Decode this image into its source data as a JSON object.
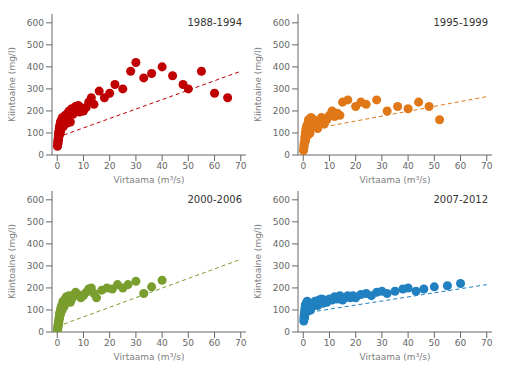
{
  "chart_data": [
    {
      "type": "scatter",
      "title": "1988-1994",
      "xlabel": "Virtaama (m³/s)",
      "ylabel": "Kiintoaine  (mg/l)",
      "xlim": [
        -2,
        72
      ],
      "ylim": [
        0,
        640
      ],
      "xticks": [
        0,
        10,
        20,
        30,
        40,
        50,
        60,
        70
      ],
      "yticks": [
        0,
        100,
        200,
        300,
        400,
        500,
        600
      ],
      "grid": false,
      "series": [
        {
          "type": "scatter",
          "marker": "circle",
          "color": "#c00000",
          "x": [
            0.1,
            0.2,
            0.2,
            0.3,
            0.3,
            0.4,
            0.4,
            0.5,
            0.5,
            0.5,
            0.6,
            0.6,
            0.7,
            0.7,
            0.8,
            0.8,
            0.9,
            0.9,
            1.0,
            1.0,
            1.1,
            1.1,
            1.2,
            1.2,
            1.3,
            1.3,
            1.4,
            1.5,
            1.5,
            1.6,
            1.7,
            1.8,
            1.9,
            2.0,
            2.0,
            2.1,
            2.2,
            2.3,
            2.4,
            2.5,
            2.6,
            2.7,
            2.8,
            3.0,
            3.2,
            3.5,
            3.8,
            4.0,
            4.5,
            5.0,
            5.5,
            6.0,
            6.5,
            7.0,
            8.0,
            8.5,
            9.0,
            10.0,
            11.0,
            12.0,
            13.0,
            14.0,
            16.0,
            18.0,
            20.0,
            22.0,
            25.0,
            28.0,
            30.0,
            33.0,
            36.0,
            40.0,
            44.0,
            48.0,
            50.0,
            55.0,
            60.0,
            65.0
          ],
          "values": [
            40,
            50,
            60,
            55,
            70,
            65,
            80,
            75,
            90,
            100,
            85,
            95,
            100,
            110,
            90,
            120,
            115,
            130,
            105,
            125,
            140,
            100,
            150,
            120,
            110,
            130,
            140,
            120,
            150,
            160,
            140,
            155,
            130,
            145,
            170,
            150,
            160,
            140,
            130,
            165,
            150,
            170,
            140,
            180,
            160,
            170,
            145,
            190,
            200,
            150,
            210,
            185,
            200,
            220,
            225,
            195,
            215,
            200,
            215,
            240,
            260,
            230,
            290,
            260,
            280,
            320,
            300,
            380,
            420,
            350,
            370,
            400,
            360,
            320,
            300,
            380,
            280,
            260
          ]
        },
        {
          "type": "line",
          "line_style": "dashed",
          "color": "#c00000",
          "x": [
            0,
            70
          ],
          "values": [
            80,
            380
          ]
        }
      ]
    },
    {
      "type": "scatter",
      "title": "1995-1999",
      "xlabel": "Virtaama (m³/s)",
      "ylabel": "Kiintoaine  (mg/l)",
      "xlim": [
        -2,
        72
      ],
      "ylim": [
        0,
        640
      ],
      "xticks": [
        0,
        10,
        20,
        30,
        40,
        50,
        60,
        70
      ],
      "yticks": [
        0,
        100,
        200,
        300,
        400,
        500,
        600
      ],
      "grid": false,
      "series": [
        {
          "type": "scatter",
          "marker": "circle",
          "color": "#e07818",
          "x": [
            0.1,
            0.2,
            0.3,
            0.3,
            0.5,
            0.5,
            0.6,
            0.7,
            0.8,
            0.8,
            0.9,
            1.0,
            1.0,
            1.1,
            1.2,
            1.3,
            1.4,
            1.5,
            1.6,
            1.7,
            1.8,
            2.0,
            2.2,
            2.4,
            2.6,
            3.0,
            3.5,
            4.0,
            4.5,
            5.0,
            5.5,
            6.0,
            7.0,
            7.5,
            8.0,
            9.0,
            10.0,
            11.0,
            12.0,
            13.0,
            14.0,
            15.0,
            17.0,
            20.0,
            22.0,
            24.0,
            28.0,
            32.0,
            36.0,
            40.0,
            44.0,
            48.0,
            52.0
          ],
          "values": [
            20,
            30,
            50,
            40,
            60,
            55,
            80,
            70,
            100,
            90,
            65,
            110,
            95,
            120,
            85,
            130,
            110,
            100,
            140,
            120,
            90,
            160,
            150,
            125,
            100,
            170,
            140,
            160,
            130,
            155,
            120,
            145,
            170,
            150,
            140,
            160,
            180,
            200,
            175,
            190,
            180,
            240,
            250,
            220,
            240,
            230,
            250,
            200,
            220,
            210,
            240,
            220,
            160
          ]
        },
        {
          "type": "line",
          "line_style": "dashed",
          "color": "#e07818",
          "x": [
            0,
            70
          ],
          "values": [
            110,
            265
          ]
        }
      ]
    },
    {
      "type": "scatter",
      "title": "2000-2006",
      "xlabel": "Virtaama (m³/s)",
      "ylabel": "Kiintoaine  (mg/l)",
      "xlim": [
        -2,
        72
      ],
      "ylim": [
        0,
        640
      ],
      "xticks": [
        0,
        10,
        20,
        30,
        40,
        50,
        60,
        70
      ],
      "yticks": [
        0,
        100,
        200,
        300,
        400,
        500,
        600
      ],
      "grid": false,
      "series": [
        {
          "type": "scatter",
          "marker": "circle",
          "color": "#7a9e2e",
          "x": [
            0.1,
            0.2,
            0.2,
            0.3,
            0.3,
            0.4,
            0.5,
            0.5,
            0.6,
            0.7,
            0.7,
            0.8,
            0.8,
            0.9,
            1.0,
            1.0,
            1.1,
            1.2,
            1.2,
            1.3,
            1.4,
            1.5,
            1.6,
            1.7,
            1.8,
            1.9,
            2.0,
            2.0,
            2.2,
            2.4,
            2.6,
            2.8,
            3.0,
            3.5,
            4.0,
            4.5,
            5.0,
            5.5,
            6.0,
            6.5,
            7.0,
            8.0,
            9.0,
            10.0,
            11.0,
            12.0,
            13.0,
            14.0,
            15.0,
            17.0,
            19.0,
            21.0,
            23.0,
            25.0,
            27.0,
            30.0,
            33.0,
            36.0,
            40.0
          ],
          "values": [
            10,
            15,
            20,
            25,
            30,
            35,
            40,
            50,
            45,
            60,
            55,
            70,
            65,
            80,
            75,
            90,
            85,
            95,
            80,
            100,
            110,
            95,
            105,
            120,
            110,
            100,
            125,
            115,
            140,
            130,
            115,
            125,
            150,
            160,
            145,
            165,
            135,
            150,
            160,
            170,
            180,
            170,
            155,
            165,
            180,
            195,
            200,
            175,
            155,
            190,
            200,
            195,
            215,
            200,
            215,
            230,
            175,
            205,
            235
          ]
        },
        {
          "type": "line",
          "line_style": "dashed",
          "color": "#7a9e2e",
          "x": [
            0,
            70
          ],
          "values": [
            25,
            330
          ]
        }
      ]
    },
    {
      "type": "scatter",
      "title": "2007-2012",
      "xlabel": "Virtaama (m³/s)",
      "ylabel": "Kiintoaine  (mg/l)",
      "xlim": [
        -2,
        72
      ],
      "ylim": [
        0,
        640
      ],
      "xticks": [
        0,
        10,
        20,
        30,
        40,
        50,
        60,
        70
      ],
      "yticks": [
        0,
        100,
        200,
        300,
        400,
        500,
        600
      ],
      "grid": false,
      "series": [
        {
          "type": "scatter",
          "marker": "circle",
          "color": "#2080c0",
          "x": [
            0.2,
            0.3,
            0.3,
            0.4,
            0.5,
            0.5,
            0.6,
            0.7,
            0.7,
            0.8,
            0.8,
            0.9,
            1.0,
            1.0,
            1.1,
            1.2,
            1.2,
            1.3,
            1.4,
            1.5,
            1.5,
            1.6,
            1.7,
            1.8,
            1.9,
            2.0,
            2.0,
            2.2,
            2.5,
            2.8,
            3.0,
            3.5,
            4.0,
            4.5,
            5.0,
            5.5,
            6.0,
            6.5,
            7.0,
            7.5,
            8.0,
            9.0,
            10.0,
            11.0,
            12.0,
            13.0,
            14.0,
            15.0,
            16.0,
            17.0,
            18.0,
            19.0,
            20.0,
            22.0,
            24.0,
            26.0,
            28.0,
            30.0,
            32.0,
            35.0,
            38.0,
            40.0,
            43.0,
            46.0,
            50.0,
            55.0,
            60.0
          ],
          "values": [
            50,
            60,
            70,
            80,
            65,
            90,
            100,
            85,
            110,
            95,
            120,
            105,
            90,
            115,
            130,
            100,
            120,
            110,
            125,
            140,
            115,
            100,
            110,
            95,
            115,
            105,
            120,
            130,
            110,
            100,
            115,
            130,
            120,
            140,
            130,
            120,
            145,
            135,
            150,
            130,
            145,
            135,
            150,
            145,
            160,
            150,
            165,
            145,
            155,
            165,
            155,
            165,
            155,
            170,
            175,
            165,
            180,
            185,
            175,
            185,
            195,
            200,
            185,
            195,
            205,
            210,
            220
          ]
        },
        {
          "type": "line",
          "line_style": "dashed",
          "color": "#2080c0",
          "x": [
            0,
            70
          ],
          "values": [
            85,
            215
          ]
        }
      ]
    }
  ]
}
